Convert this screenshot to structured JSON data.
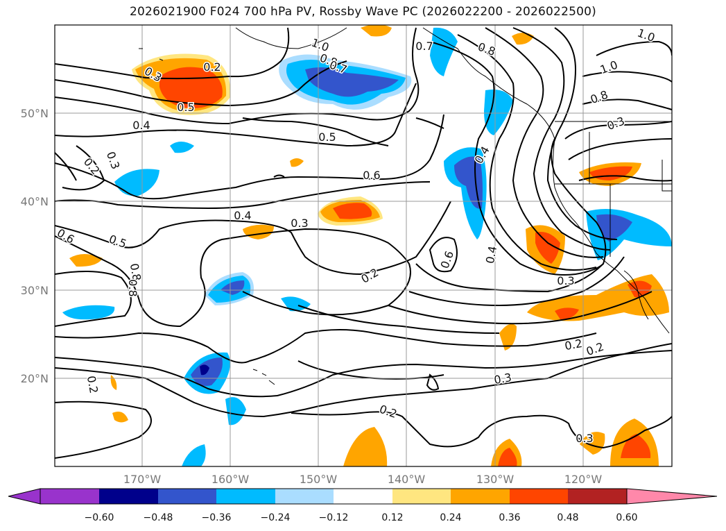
{
  "title": "2026021900 F024 700 hPa PV, Rossby Wave PC (2026022200 - 2026022500)",
  "lat_labels": [
    "50°N",
    "40°N",
    "30°N",
    "20°N"
  ],
  "lon_labels": [
    "170°W",
    "160°W",
    "150°W",
    "140°W",
    "130°W",
    "120°W"
  ],
  "contour_labels": [
    "1.0",
    "0.7",
    "0.8",
    "0.3",
    "0.2",
    "0.5",
    "0.8",
    "0.7",
    "1.0",
    "1.0",
    "0.8",
    "0.4",
    "0.5",
    "0.3",
    "0.2",
    "0.6",
    "0.4",
    "0.4",
    "0.3",
    "0.6",
    "0.5",
    "0.8",
    "0.8",
    "0.2",
    "0.6",
    "0.4",
    "0.3",
    "0.3",
    "0.2",
    "0.2",
    "0.2",
    "0.2",
    "0.3",
    "0.3"
  ],
  "colorbar": {
    "colors": [
      "#9933cc",
      "#00008b",
      "#3355cc",
      "#00bbff",
      "#aaddff",
      "#ffffff",
      "#ffe680",
      "#ffa500",
      "#ff4500",
      "#b22222",
      "#ff88aa"
    ],
    "tick_labels": [
      "−0.60",
      "−0.48",
      "−0.36",
      "−0.24",
      "−0.12",
      "0.12",
      "0.24",
      "0.36",
      "0.48",
      "0.60"
    ]
  }
}
